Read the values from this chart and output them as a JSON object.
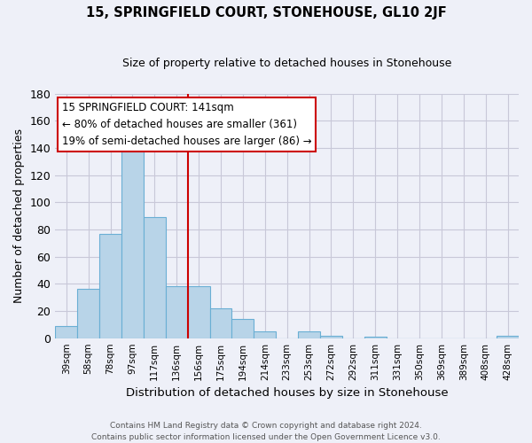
{
  "title": "15, SPRINGFIELD COURT, STONEHOUSE, GL10 2JF",
  "subtitle": "Size of property relative to detached houses in Stonehouse",
  "xlabel": "Distribution of detached houses by size in Stonehouse",
  "ylabel": "Number of detached properties",
  "bar_labels": [
    "39sqm",
    "58sqm",
    "78sqm",
    "97sqm",
    "117sqm",
    "136sqm",
    "156sqm",
    "175sqm",
    "194sqm",
    "214sqm",
    "233sqm",
    "253sqm",
    "272sqm",
    "292sqm",
    "311sqm",
    "331sqm",
    "350sqm",
    "369sqm",
    "389sqm",
    "408sqm",
    "428sqm"
  ],
  "bar_values": [
    9,
    36,
    77,
    145,
    89,
    38,
    38,
    22,
    14,
    5,
    0,
    5,
    2,
    0,
    1,
    0,
    0,
    0,
    0,
    0,
    2
  ],
  "bar_color_light": "#b8d4e8",
  "bar_color_edge": "#6aafd4",
  "vline_color": "#cc0000",
  "vline_index": 5,
  "annotation_title": "15 SPRINGFIELD COURT: 141sqm",
  "annotation_line1": "← 80% of detached houses are smaller (361)",
  "annotation_line2": "19% of semi-detached houses are larger (86) →",
  "annotation_box_color": "#ffffff",
  "annotation_box_edge": "#cc0000",
  "ylim": [
    0,
    180
  ],
  "yticks": [
    0,
    20,
    40,
    60,
    80,
    100,
    120,
    140,
    160,
    180
  ],
  "grid_color": "#c8c8d8",
  "background_color": "#eef0f8",
  "footer_line1": "Contains HM Land Registry data © Crown copyright and database right 2024.",
  "footer_line2": "Contains public sector information licensed under the Open Government Licence v3.0."
}
